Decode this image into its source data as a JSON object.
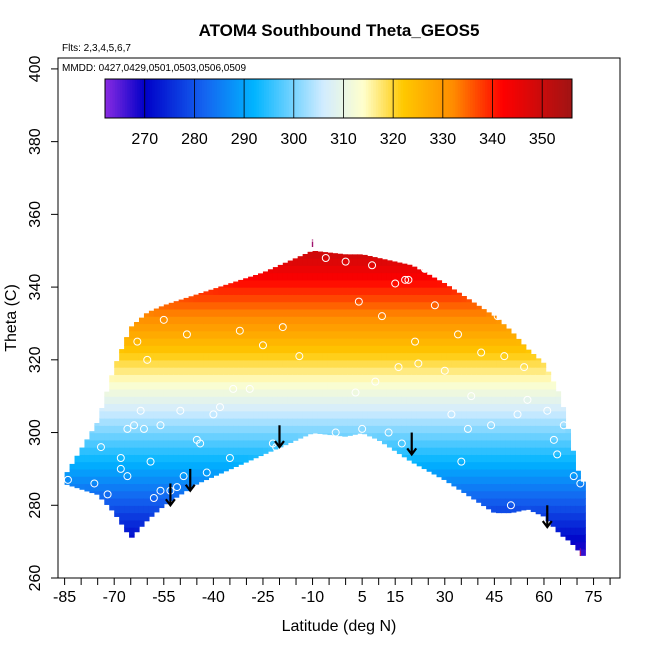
{
  "chart_data": {
    "type": "heatmap",
    "title": "ATOM4 Southbound Theta_GEOS5",
    "notes": {
      "flights": "Flts: 2,3,4,5,6,7",
      "dates": "MMDD: 0427,0429,0501,0503,0506,0509"
    },
    "xlabel": "Latitude (deg N)",
    "ylabel": "Theta (C)",
    "xlim": [
      -87,
      83
    ],
    "ylim": [
      260,
      403
    ],
    "x_ticks": [
      -85,
      -70,
      -55,
      -40,
      -25,
      -10,
      5,
      15,
      30,
      45,
      60,
      75
    ],
    "x_minor_step": 5,
    "y_ticks": [
      260,
      280,
      300,
      320,
      340,
      360,
      380,
      400
    ],
    "colorbar": {
      "range": [
        262,
        356
      ],
      "tick_values": [
        270,
        280,
        290,
        300,
        310,
        320,
        330,
        340,
        350
      ],
      "divider_values": [
        270,
        280,
        290,
        300,
        310,
        320,
        330,
        340,
        350
      ],
      "stops": [
        {
          "value": 262,
          "color": "#8a2be2"
        },
        {
          "value": 270,
          "color": "#0000c8"
        },
        {
          "value": 282,
          "color": "#1464f0"
        },
        {
          "value": 292,
          "color": "#00b4ff"
        },
        {
          "value": 306,
          "color": "#d2ecff"
        },
        {
          "value": 314,
          "color": "#ffffcc"
        },
        {
          "value": 322,
          "color": "#ffc800"
        },
        {
          "value": 332,
          "color": "#ff8c00"
        },
        {
          "value": 342,
          "color": "#ff0000"
        },
        {
          "value": 356,
          "color": "#a01414"
        }
      ]
    },
    "field": {
      "lat_min": -85,
      "lat_max": 72,
      "lat_step": 1.5,
      "theta_step": 2,
      "envelope_lat": [
        -85,
        -75,
        -70,
        -65,
        -60,
        -55,
        -45,
        -35,
        -25,
        -15,
        -10,
        0,
        5,
        10,
        20,
        30,
        40,
        45,
        50,
        55,
        60,
        65,
        68,
        70,
        72
      ],
      "envelope_bottom": [
        286,
        283,
        278,
        271,
        276,
        280,
        286,
        290,
        294,
        298,
        300,
        299,
        300,
        298,
        292,
        287,
        281,
        278,
        278,
        279,
        277,
        272,
        270,
        268,
        266
      ],
      "envelope_top": [
        288,
        303,
        318,
        329,
        333,
        335,
        338,
        341,
        344,
        348,
        350,
        349,
        349,
        348,
        346,
        341,
        335,
        332,
        328,
        323,
        319,
        310,
        298,
        290,
        286
      ]
    },
    "sample_points": [
      [
        -84,
        287
      ],
      [
        -76,
        286
      ],
      [
        -74,
        296
      ],
      [
        -72,
        283
      ],
      [
        -73,
        275
      ],
      [
        -71,
        270
      ],
      [
        -68,
        290
      ],
      [
        -68,
        293
      ],
      [
        -66,
        301
      ],
      [
        -66,
        288
      ],
      [
        -64,
        302
      ],
      [
        -62,
        306
      ],
      [
        -61,
        301
      ],
      [
        -59,
        292
      ],
      [
        -58,
        282
      ],
      [
        -56,
        284
      ],
      [
        -56,
        302
      ],
      [
        -53,
        284
      ],
      [
        -51,
        285
      ],
      [
        -49,
        288
      ],
      [
        -50,
        306
      ],
      [
        -45,
        298
      ],
      [
        -44,
        297
      ],
      [
        -42,
        289
      ],
      [
        -40,
        305
      ],
      [
        -38,
        307
      ],
      [
        -35,
        293
      ],
      [
        -34,
        312
      ],
      [
        -32,
        328
      ],
      [
        -29,
        312
      ],
      [
        -25,
        324
      ],
      [
        -22,
        297
      ],
      [
        -21,
        296
      ],
      [
        -19,
        329
      ],
      [
        -14,
        321
      ],
      [
        -12,
        297
      ],
      [
        -6,
        348
      ],
      [
        -3,
        300
      ],
      [
        0,
        347
      ],
      [
        3,
        311
      ],
      [
        4,
        336
      ],
      [
        5,
        301
      ],
      [
        8,
        346
      ],
      [
        9,
        314
      ],
      [
        11,
        332
      ],
      [
        13,
        300
      ],
      [
        15,
        341
      ],
      [
        16,
        318
      ],
      [
        17,
        297
      ],
      [
        18,
        342
      ],
      [
        19,
        342
      ],
      [
        21,
        325
      ],
      [
        22,
        319
      ],
      [
        24,
        345
      ],
      [
        27,
        335
      ],
      [
        30,
        317
      ],
      [
        32,
        305
      ],
      [
        34,
        327
      ],
      [
        35,
        292
      ],
      [
        37,
        301
      ],
      [
        38,
        310
      ],
      [
        41,
        322
      ],
      [
        44,
        302
      ],
      [
        46,
        332
      ],
      [
        48,
        321
      ],
      [
        50,
        280
      ],
      [
        52,
        305
      ],
      [
        54,
        318
      ],
      [
        55,
        309
      ],
      [
        57,
        330
      ],
      [
        60,
        327
      ],
      [
        61,
        306
      ],
      [
        63,
        298
      ],
      [
        64,
        294
      ],
      [
        66,
        302
      ],
      [
        69,
        288
      ],
      [
        71,
        286
      ],
      [
        -76,
        318
      ],
      [
        -70,
        325
      ],
      [
        -68,
        331
      ],
      [
        -63,
        325
      ],
      [
        -60,
        320
      ],
      [
        -55,
        331
      ],
      [
        -53,
        337
      ],
      [
        -48,
        327
      ]
    ],
    "arrows": [
      {
        "lat": -53,
        "theta_top": 286,
        "theta_bottom": 280
      },
      {
        "lat": -47,
        "theta_top": 290,
        "theta_bottom": 284
      },
      {
        "lat": -20,
        "theta_top": 302,
        "theta_bottom": 296
      },
      {
        "lat": 20,
        "theta_top": 300,
        "theta_bottom": 294
      },
      {
        "lat": 61,
        "theta_top": 280,
        "theta_bottom": 274
      }
    ],
    "end_markers": [
      {
        "lat": -10,
        "theta": 351,
        "label": "i"
      },
      {
        "lat": 71,
        "theta": 266,
        "label": "i"
      }
    ]
  }
}
